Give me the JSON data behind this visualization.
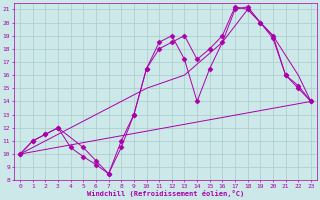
{
  "xlabel": "Windchill (Refroidissement éolien,°C)",
  "background_color": "#cce8e8",
  "grid_color": "#aacccc",
  "line_color": "#aa00aa",
  "xlim": [
    -0.5,
    23.5
  ],
  "ylim": [
    8,
    21.5
  ],
  "yticks": [
    8,
    9,
    10,
    11,
    12,
    13,
    14,
    15,
    16,
    17,
    18,
    19,
    20,
    21
  ],
  "xticks": [
    0,
    1,
    2,
    3,
    4,
    5,
    6,
    7,
    8,
    9,
    10,
    11,
    12,
    13,
    14,
    15,
    16,
    17,
    18,
    19,
    20,
    21,
    22,
    23
  ],
  "lines": [
    {
      "x": [
        0,
        1,
        2,
        3,
        5,
        6,
        7,
        8,
        9,
        10,
        11,
        12,
        13,
        14,
        15,
        16,
        17,
        18,
        19,
        20,
        21,
        22,
        23
      ],
      "y": [
        10,
        11,
        11.5,
        12,
        10.5,
        9.5,
        8.5,
        11,
        13,
        16.5,
        18.5,
        19,
        17.2,
        14,
        16.5,
        18.5,
        21,
        21.2,
        20,
        18.8,
        16,
        15,
        14
      ],
      "marker": "D",
      "markersize": 2.5
    },
    {
      "x": [
        0,
        1,
        2,
        3,
        4,
        5,
        6,
        7,
        8,
        9,
        10,
        11,
        12,
        13,
        14,
        15,
        16,
        17,
        18,
        19,
        20,
        21,
        22,
        23
      ],
      "y": [
        10,
        11,
        11.5,
        12,
        10.5,
        9.8,
        9.2,
        8.5,
        10.5,
        13,
        16.5,
        18,
        18.5,
        19,
        17.2,
        18,
        19,
        21.2,
        21,
        20,
        19,
        16,
        15.2,
        14
      ],
      "marker": "D",
      "markersize": 2.5
    },
    {
      "x": [
        0,
        5,
        10,
        13,
        16,
        18,
        20,
        22,
        23
      ],
      "y": [
        10,
        12.5,
        15,
        16,
        18.5,
        21,
        19,
        16,
        14
      ],
      "marker": null,
      "markersize": 0
    },
    {
      "x": [
        0,
        23
      ],
      "y": [
        10,
        14
      ],
      "marker": null,
      "markersize": 0
    }
  ]
}
